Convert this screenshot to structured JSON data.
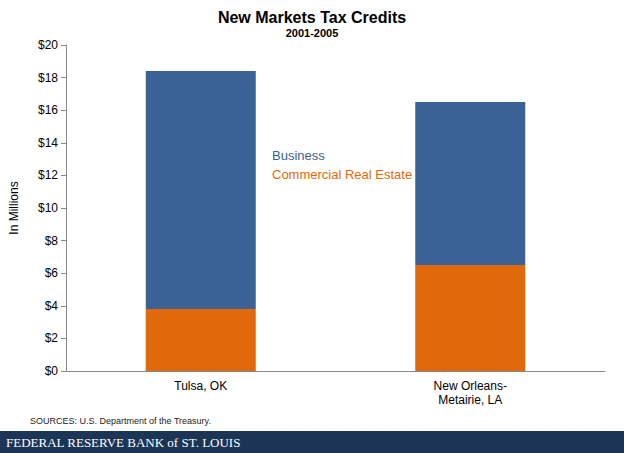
{
  "chart_data": {
    "type": "bar",
    "title": "New Markets Tax Credits",
    "subtitle": "2001-2005",
    "y_label": "In Millions",
    "categories": [
      "Tulsa, OK",
      "New Orleans-\nMetairie, LA"
    ],
    "series": [
      {
        "name": "Business",
        "color": "#3a6296",
        "values": [
          14.6,
          10.0
        ]
      },
      {
        "name": "Commercial Real Estate",
        "color": "#e0690c",
        "values": [
          3.8,
          6.5
        ]
      }
    ],
    "stacked": true,
    "ylim": [
      0,
      20
    ],
    "yticks": [
      {
        "value": 0,
        "label": "$0"
      },
      {
        "value": 2,
        "label": "$2"
      },
      {
        "value": 4,
        "label": "$4"
      },
      {
        "value": 6,
        "label": "$6"
      },
      {
        "value": 8,
        "label": "$8"
      },
      {
        "value": 10,
        "label": "$10"
      },
      {
        "value": 12,
        "label": "$12"
      },
      {
        "value": 14,
        "label": "$14"
      },
      {
        "value": 16,
        "label": "$16"
      },
      {
        "value": 18,
        "label": "$18"
      },
      {
        "value": 20,
        "label": "$20"
      }
    ],
    "grid": false,
    "annotations": [
      "SOURCES: U.S. Department of the Treasury.",
      "FEDERAL RESERVE BANK of ST. LOUIS"
    ]
  }
}
